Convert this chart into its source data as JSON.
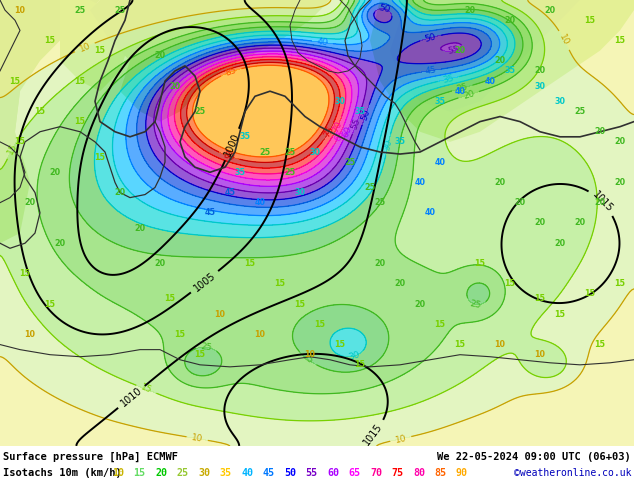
{
  "title_line1": "Surface pressure [hPa] ECMWF",
  "title_line1_right": "We 22-05-2024 09:00 UTC (06+03)",
  "title_line2": "Isotachs 10m (km/h)",
  "credit": "©weatheronline.co.uk",
  "isotach_values": [
    10,
    15,
    20,
    25,
    30,
    35,
    40,
    45,
    50,
    55,
    60,
    65,
    70,
    75,
    80,
    85,
    90
  ],
  "legend_colors": [
    "#c8b400",
    "#64dc64",
    "#00c800",
    "#96c832",
    "#c8aa00",
    "#ffc800",
    "#00b4ff",
    "#0078ff",
    "#0000ff",
    "#7800c8",
    "#aa00ff",
    "#ff00ff",
    "#ff0096",
    "#ff0000",
    "#ff00aa",
    "#ff6400",
    "#ffaa00"
  ],
  "contour_colors": {
    "10": "#c8a000",
    "15": "#96e696",
    "20": "#64c832",
    "25": "#96c832",
    "30": "#00d2d2",
    "35": "#00d2d2",
    "40": "#0096ff",
    "45": "#0096ff",
    "50": "#0000ff",
    "55": "#8800cc",
    "60": "#aa00ff",
    "65": "#ff00ff",
    "70": "#ff0096",
    "75": "#ff0000",
    "80": "#c80000",
    "85": "#ff6400",
    "90": "#ffaa00"
  },
  "bg_color": "#ffffff",
  "land_color": "#c8e8a0",
  "land_color2": "#d0f0a0",
  "sea_color": "#e0eef8",
  "gray_sea": "#d8d8e8",
  "figsize": [
    6.34,
    4.9
  ],
  "dpi": 100
}
